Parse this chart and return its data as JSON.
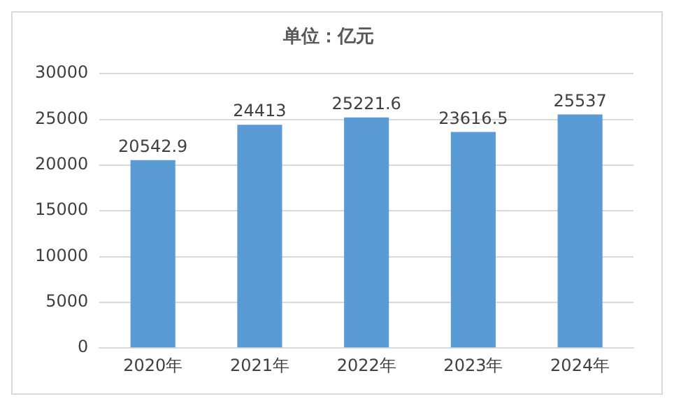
{
  "chart_data": {
    "type": "bar",
    "title": "单位：亿元",
    "categories": [
      "2020年",
      "2021年",
      "2022年",
      "2023年",
      "2024年"
    ],
    "values": [
      20542.9,
      24413,
      25221.6,
      23616.5,
      25537
    ],
    "color": "#5b9bd5",
    "ylim": [
      0,
      30000
    ],
    "yticks": [
      0,
      5000,
      10000,
      15000,
      20000,
      25000,
      30000
    ],
    "grid": "y",
    "data_labels": true,
    "legend": false
  }
}
